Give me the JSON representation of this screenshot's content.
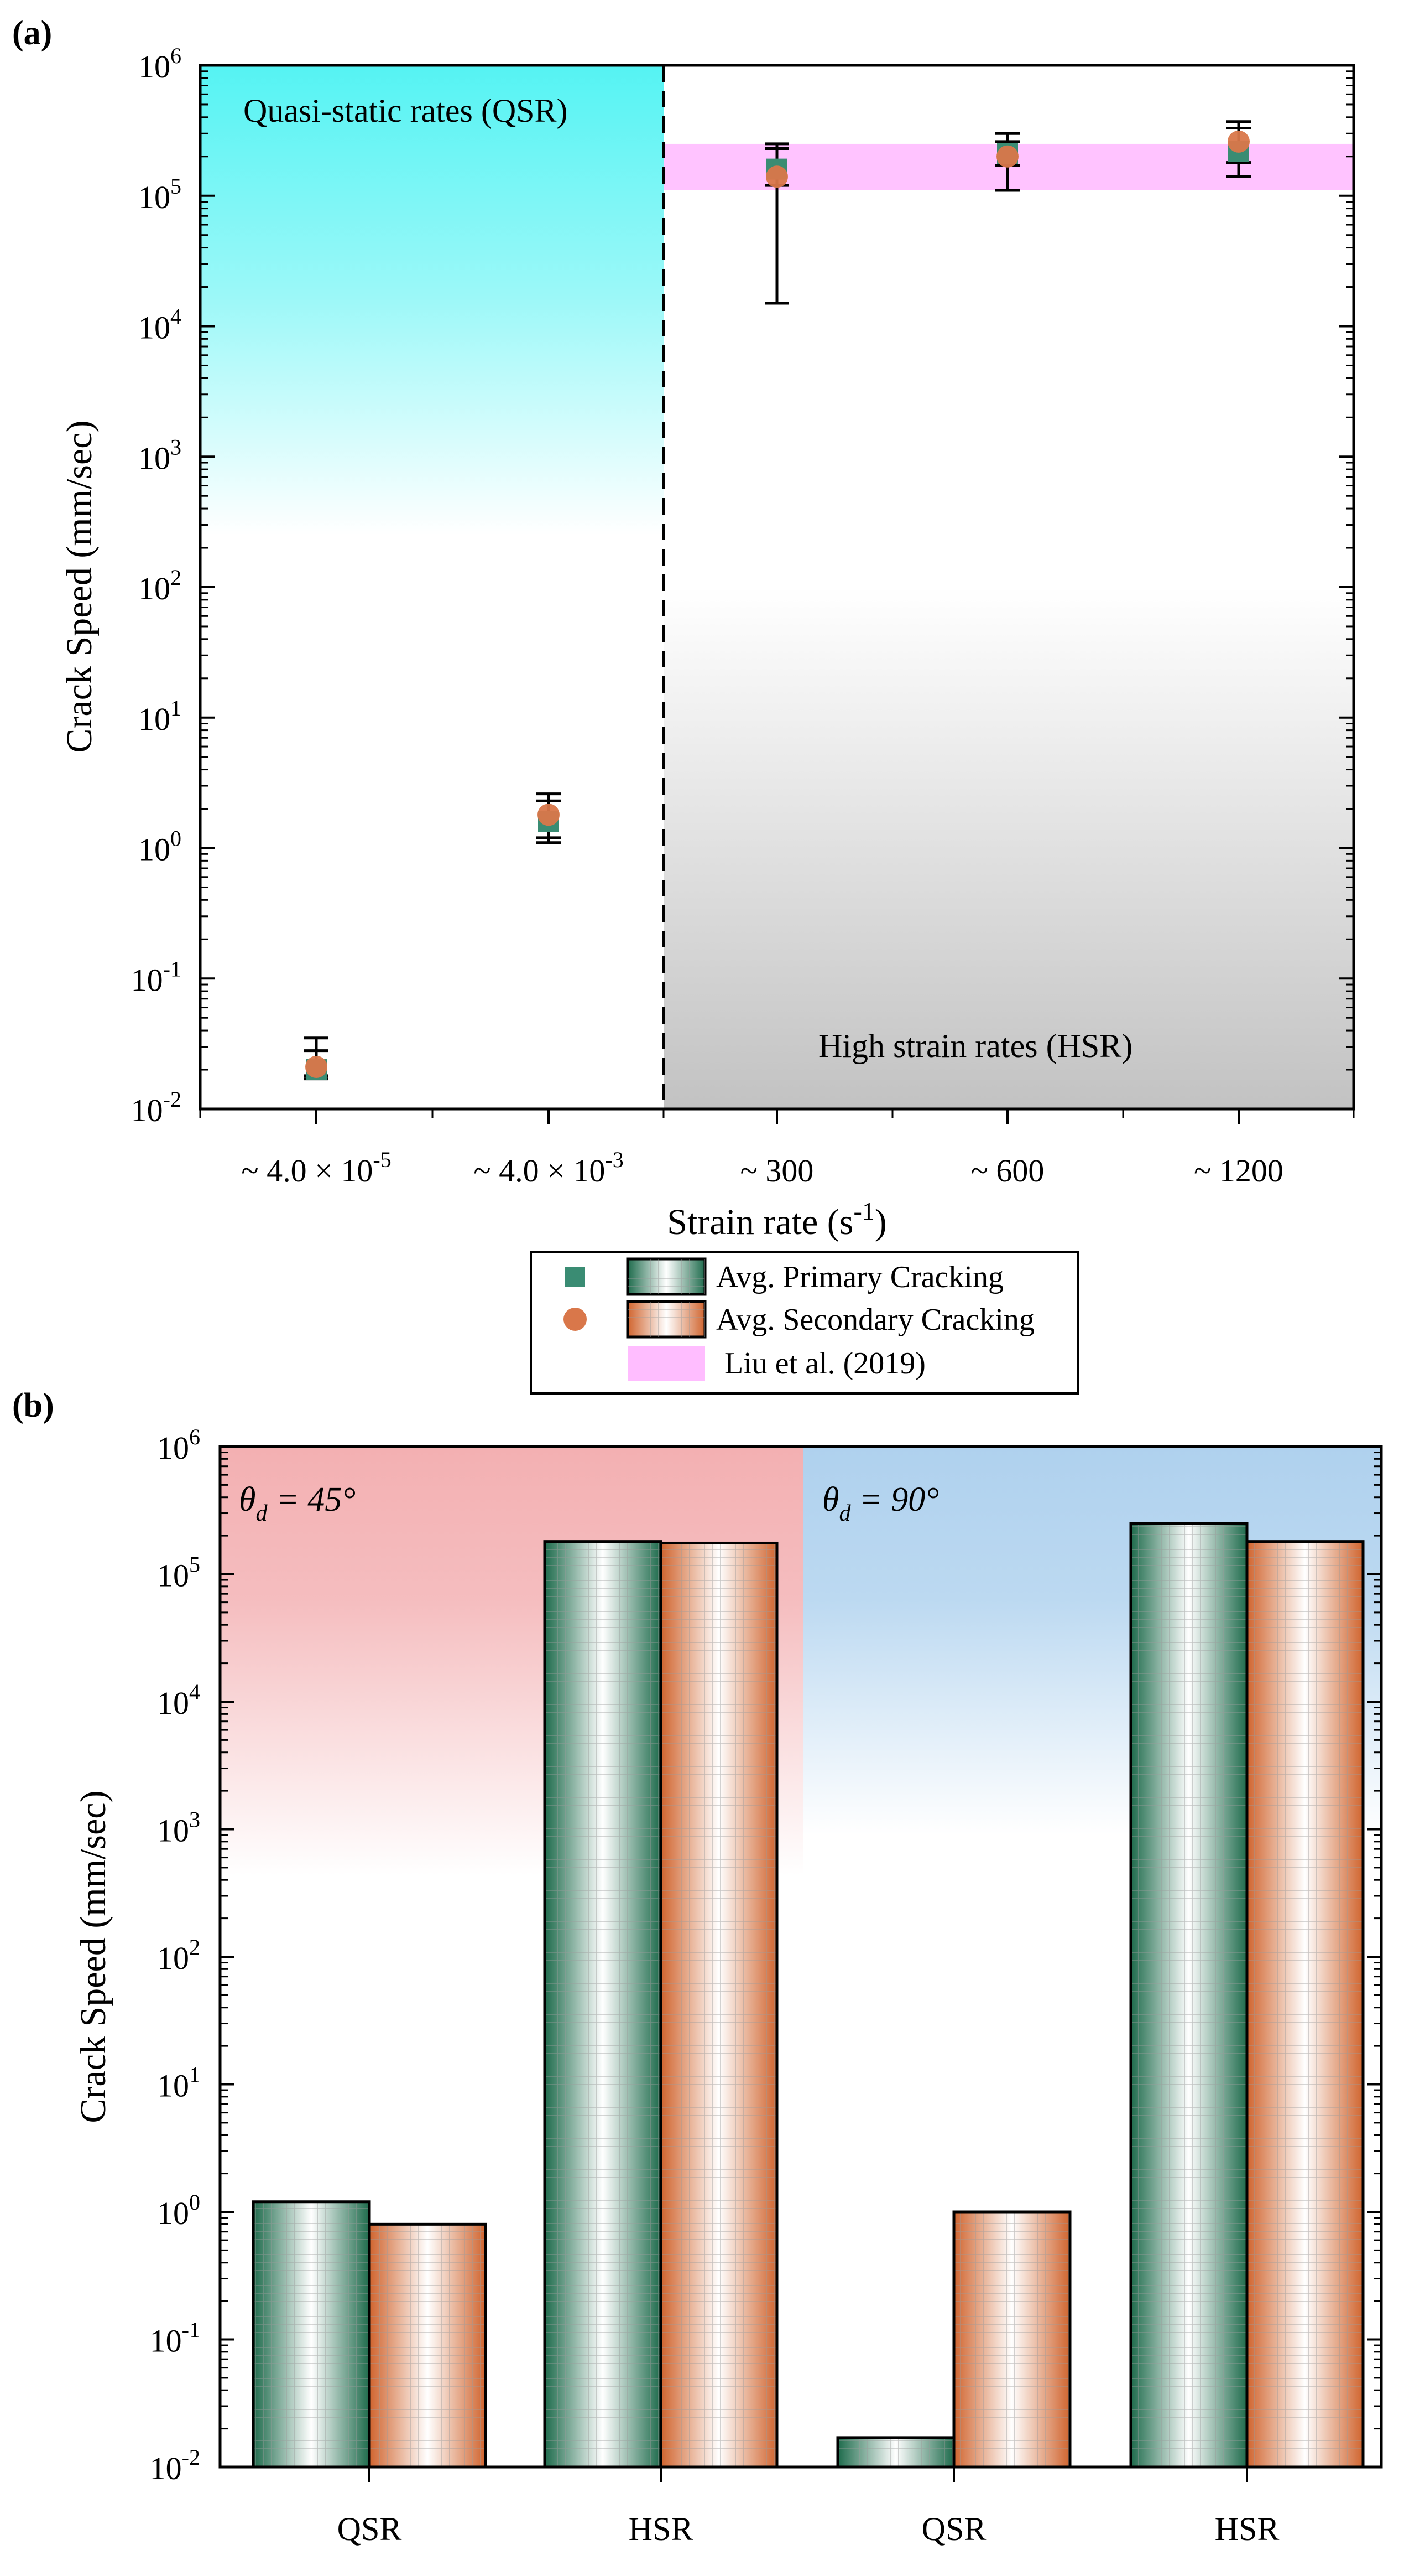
{
  "chart_data": [
    {
      "panel": "(a)",
      "type": "scatter",
      "yscale": "log",
      "ylim": [
        0.01,
        1000000
      ],
      "xlabel_main": "Strain rate (s",
      "xlabel_sup": "-1",
      "xlabel_end": ")",
      "ylabel": "Crack Speed (mm/sec)",
      "categories": [
        {
          "prefix": "~ 4.0 × 10",
          "sup": "-5"
        },
        {
          "prefix": "~ 4.0 × 10",
          "sup": "-3"
        },
        {
          "prefix": "~ 300",
          "sup": ""
        },
        {
          "prefix": "~ 600",
          "sup": ""
        },
        {
          "prefix": "~ 1200",
          "sup": ""
        }
      ],
      "y_ticks": [
        {
          "value": 0.01,
          "base": "10",
          "exp": "-2"
        },
        {
          "value": 0.1,
          "base": "10",
          "exp": "-1"
        },
        {
          "value": 1,
          "base": "10",
          "exp": "0"
        },
        {
          "value": 10,
          "base": "10",
          "exp": "1"
        },
        {
          "value": 100,
          "base": "10",
          "exp": "2"
        },
        {
          "value": 1000,
          "base": "10",
          "exp": "3"
        },
        {
          "value": 10000,
          "base": "10",
          "exp": "4"
        },
        {
          "value": 100000,
          "base": "10",
          "exp": "5"
        },
        {
          "value": 1000000,
          "base": "10",
          "exp": "6"
        }
      ],
      "regions": {
        "qsr_label": "Quasi-static rates (QSR)",
        "hsr_label": "High strain rates (HSR)",
        "qsr_color": "#66F5F5",
        "hsr_color": "#C8C8C8",
        "divider_after_category": 1
      },
      "reference_band": {
        "label": "Liu et al. (2019)",
        "y_min": 110000,
        "y_max": 250000,
        "color": "#FFBDFF"
      },
      "series": [
        {
          "name": "Avg. Primary Cracking",
          "marker": "square",
          "color": "#3A8C73",
          "values": [
            0.02,
            1.6,
            160000,
            210000,
            220000
          ],
          "err_low": [
            0.017,
            1.1,
            15000,
            110000,
            140000
          ],
          "err_high": [
            0.035,
            2.6,
            250000,
            300000,
            370000
          ]
        },
        {
          "name": "Avg. Secondary Cracking",
          "marker": "circle",
          "color": "#D9774A",
          "values": [
            0.021,
            1.8,
            140000,
            200000,
            260000
          ],
          "err_low": [
            0.018,
            1.2,
            120000,
            170000,
            180000
          ],
          "err_high": [
            0.028,
            2.3,
            230000,
            260000,
            330000
          ]
        }
      ]
    },
    {
      "panel": "(b)",
      "type": "bar",
      "yscale": "log",
      "ylim": [
        0.01,
        1000000
      ],
      "ylabel": "Crack Speed (mm/sec)",
      "categories": [
        "QSR",
        "HSR",
        "QSR",
        "HSR"
      ],
      "groups": [
        {
          "symbol": "θ",
          "sub": "d",
          "value_text": " = 45°",
          "color": "#F4B6B8",
          "categories": [
            0,
            1
          ]
        },
        {
          "symbol": "θ",
          "sub": "d",
          "value_text": " = 90°",
          "color": "#B3D3EE",
          "categories": [
            2,
            3
          ]
        }
      ],
      "y_ticks": [
        {
          "value": 0.01,
          "base": "10",
          "exp": "-2"
        },
        {
          "value": 0.1,
          "base": "10",
          "exp": "-1"
        },
        {
          "value": 1,
          "base": "10",
          "exp": "0"
        },
        {
          "value": 10,
          "base": "10",
          "exp": "1"
        },
        {
          "value": 100,
          "base": "10",
          "exp": "2"
        },
        {
          "value": 1000,
          "base": "10",
          "exp": "3"
        },
        {
          "value": 10000,
          "base": "10",
          "exp": "4"
        },
        {
          "value": 100000,
          "base": "10",
          "exp": "5"
        },
        {
          "value": 1000000,
          "base": "10",
          "exp": "6"
        }
      ],
      "series": [
        {
          "name": "Avg. Primary Cracking",
          "color": "#2F7F60",
          "values": [
            1.2,
            180000,
            0.017,
            250000
          ]
        },
        {
          "name": "Avg. Secondary Cracking",
          "color": "#D9703E",
          "values": [
            0.8,
            175000,
            1.0,
            180000
          ]
        }
      ]
    }
  ]
}
